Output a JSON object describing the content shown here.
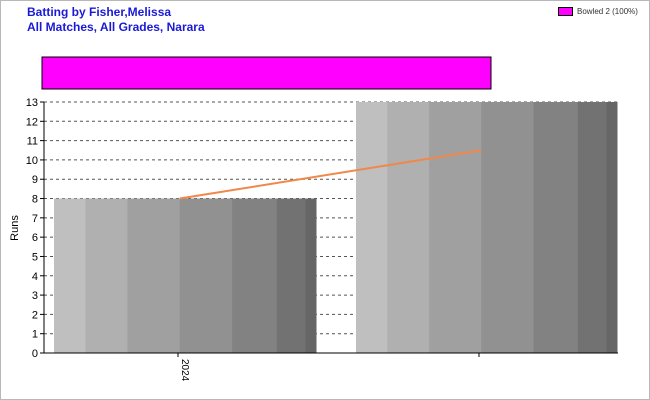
{
  "header": {
    "title_line1": "Batting by Fisher,Melissa",
    "title_line2": "All Matches, All Grades, Narara"
  },
  "legend": {
    "label": "Bowled 2 (100%)",
    "color": "#ff00ff",
    "placement": "top-right"
  },
  "chart_data": {
    "type": "bar",
    "title": "Batting by Fisher,Melissa",
    "subtitle": "All Matches, All Grades, Narara",
    "ylabel": "Runs",
    "xlabel": "",
    "categories": [
      "2024",
      ""
    ],
    "series": [
      {
        "values": [
          8,
          13
        ]
      }
    ],
    "trend_line": {
      "from": 8,
      "to": 10.5,
      "color": "#f0884a"
    },
    "dismissal_bar": {
      "label": "Bowled 2 (100%)",
      "fraction": 1.0,
      "color": "#ff00ff"
    },
    "ylim": [
      0,
      13
    ],
    "yticks": [
      0,
      1,
      2,
      3,
      4,
      5,
      6,
      7,
      8,
      9,
      10,
      11,
      12,
      13
    ],
    "grid": true,
    "legend_placement": "top-right"
  }
}
